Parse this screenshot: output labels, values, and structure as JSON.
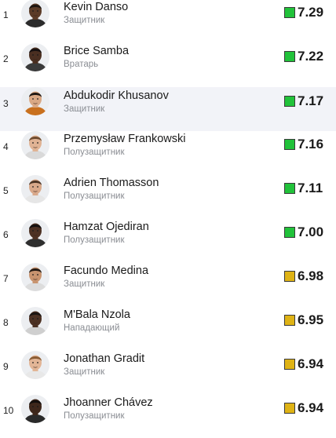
{
  "colors": {
    "high_rating": "#21c23a",
    "mid_rating": "#dfb315",
    "highlight_row": "#f2f3f8"
  },
  "players": [
    {
      "rank": "1",
      "name": "Kevin Danso",
      "position": "Защитник",
      "rating": "7.29",
      "tier": "high",
      "skin": "#5b3b27",
      "hair": "#1c1510",
      "shirt": "#2b2b2b"
    },
    {
      "rank": "2",
      "name": "Brice Samba",
      "position": "Вратарь",
      "rating": "7.22",
      "tier": "high",
      "skin": "#4a2f21",
      "hair": "#151010",
      "shirt": "#3a3a3a"
    },
    {
      "rank": "3",
      "name": "Abdukodir Khusanov",
      "position": "Защитник",
      "rating": "7.17",
      "tier": "high",
      "skin": "#d9a884",
      "hair": "#1e1712",
      "shirt": "#c9701e"
    },
    {
      "rank": "4",
      "name": "Przemysław Frankowski",
      "position": "Полузащитник",
      "rating": "7.16",
      "tier": "high",
      "skin": "#e0b394",
      "hair": "#6e4b2e",
      "shirt": "#d9d9d9"
    },
    {
      "rank": "5",
      "name": "Adrien Thomasson",
      "position": "Полузащитник",
      "rating": "7.11",
      "tier": "high",
      "skin": "#d9a98a",
      "hair": "#4a3424",
      "shirt": "#e6e6e6"
    },
    {
      "rank": "6",
      "name": "Hamzat Ojediran",
      "position": "Полузащитник",
      "rating": "7.00",
      "tier": "high",
      "skin": "#4d3123",
      "hair": "#141010",
      "shirt": "#2e2e2e"
    },
    {
      "rank": "7",
      "name": "Facundo Medina",
      "position": "Защитник",
      "rating": "6.98",
      "tier": "mid",
      "skin": "#c8946f",
      "hair": "#231a14",
      "shirt": "#dcdcdc"
    },
    {
      "rank": "8",
      "name": "M'Bala Nzola",
      "position": "Нападающий",
      "rating": "6.95",
      "tier": "mid",
      "skin": "#4b3022",
      "hair": "#1a1411",
      "shirt": "#cfcfcf"
    },
    {
      "rank": "9",
      "name": "Jonathan Gradit",
      "position": "Защитник",
      "rating": "6.94",
      "tier": "mid",
      "skin": "#e2b596",
      "hair": "#8a5c34",
      "shirt": "#e8e8e8"
    },
    {
      "rank": "10",
      "name": "Jhoanner Chávez",
      "position": "Полузащитник",
      "rating": "6.94",
      "tier": "mid",
      "skin": "#3e271b",
      "hair": "#120e0c",
      "shirt": "#2a2a2a"
    }
  ],
  "highlighted_rank": "3"
}
